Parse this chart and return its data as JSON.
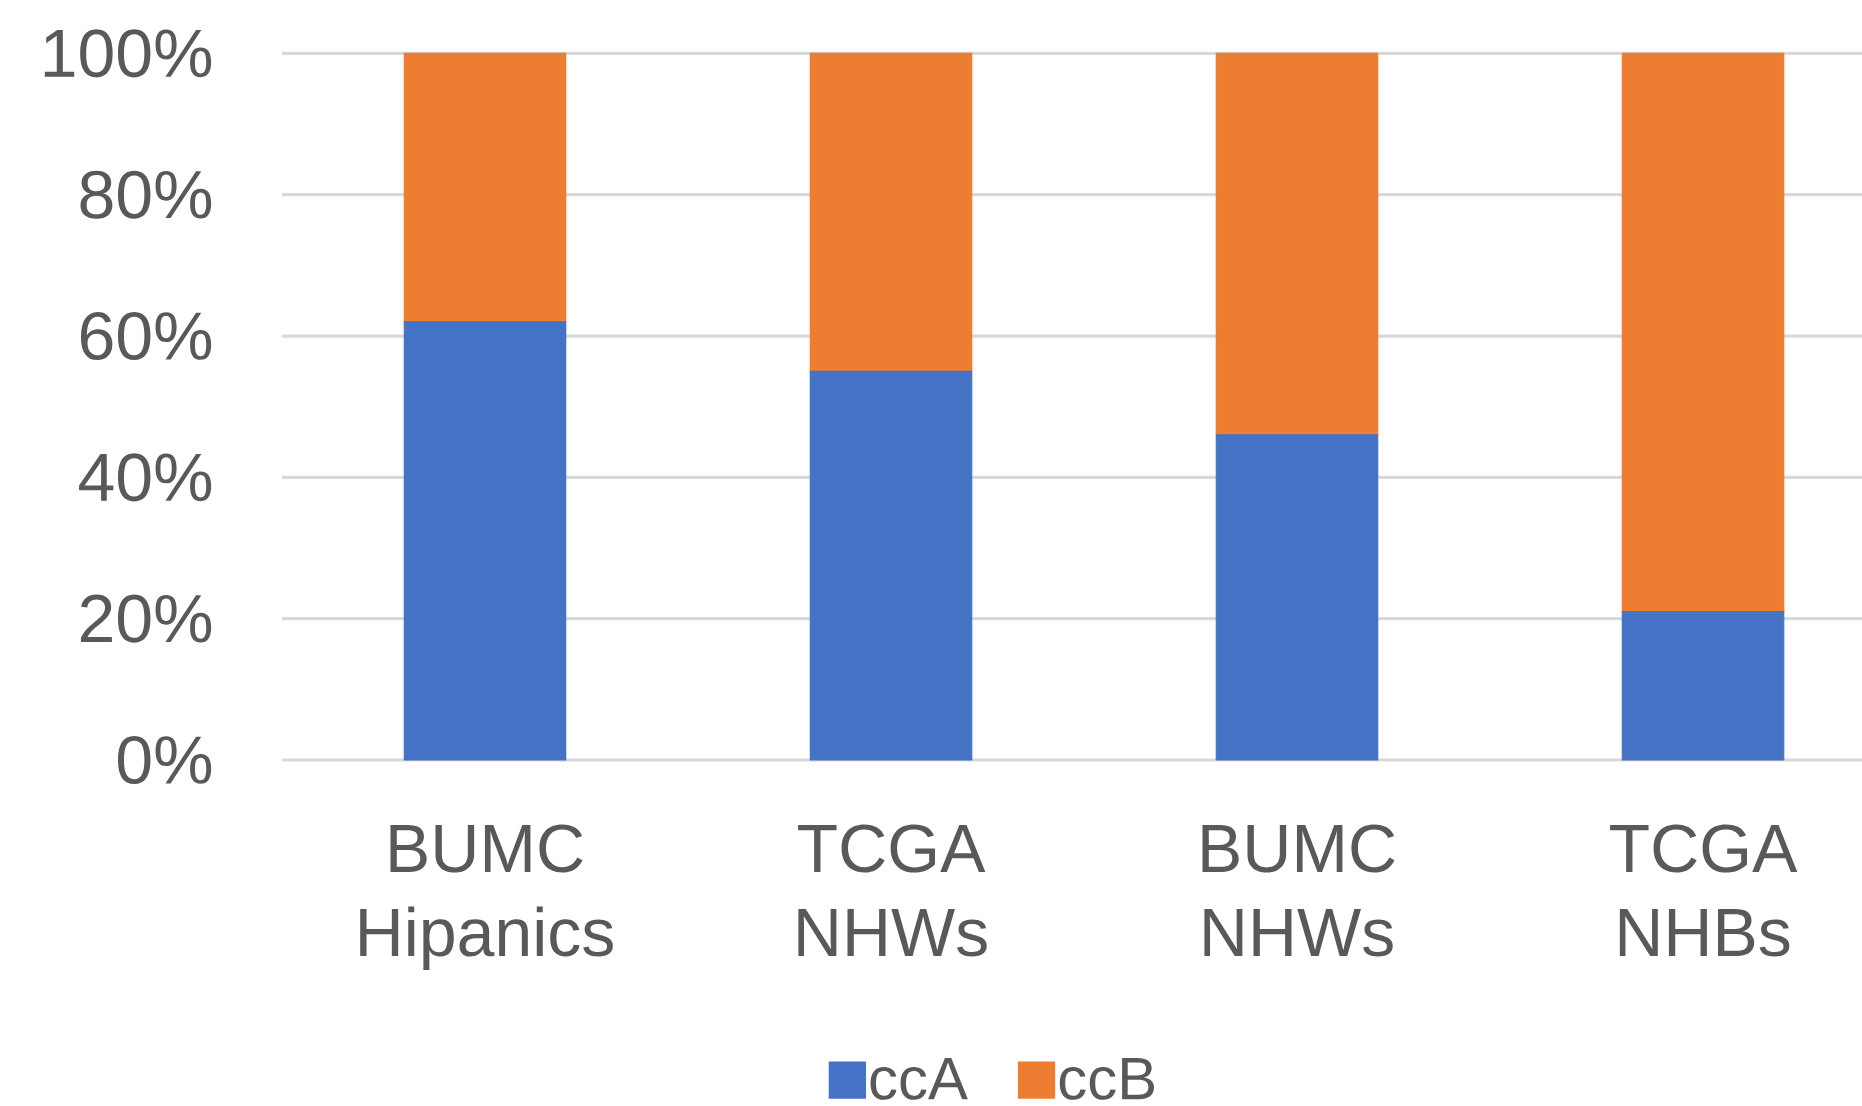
{
  "chart_data": {
    "type": "bar",
    "stacked": true,
    "categories": [
      "BUMC Hipanics",
      "TCGA NHWs",
      "BUMC NHWs",
      "TCGA NHBs"
    ],
    "series": [
      {
        "name": "ccA",
        "color": "#4472c4",
        "values": [
          62,
          55,
          46,
          21
        ]
      },
      {
        "name": "ccB",
        "color": "#ed7d31",
        "values": [
          38,
          45,
          54,
          79
        ]
      }
    ],
    "ylim": [
      0,
      100
    ],
    "yticks": [
      {
        "value": 0,
        "label": "0%"
      },
      {
        "value": 20,
        "label": "20%"
      },
      {
        "value": 40,
        "label": "40%"
      },
      {
        "value": 60,
        "label": "60%"
      },
      {
        "value": 80,
        "label": "80%"
      },
      {
        "value": 100,
        "label": "100%"
      }
    ],
    "grid": "y",
    "legend": "bottom"
  }
}
